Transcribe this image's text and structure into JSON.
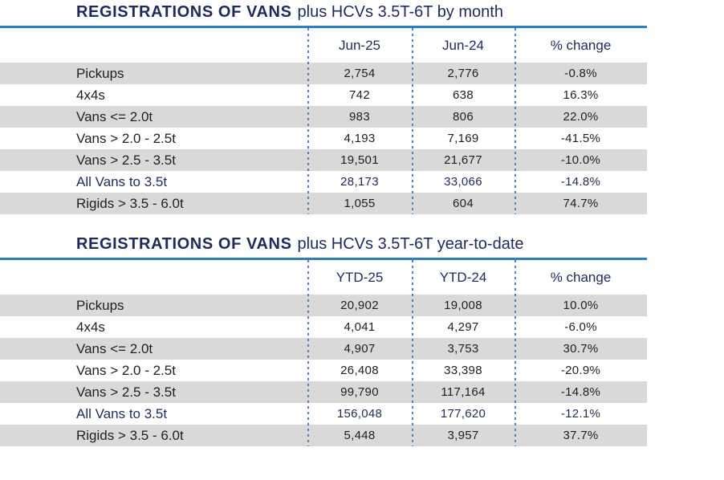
{
  "document": {
    "colors": {
      "navy_text": "#1f2a5c",
      "rule_blue": "#2d7ec4",
      "dotted_divider_blue": "#4a85c1",
      "row_shade_gray": "#d9d9d9",
      "body_text": "#1f1f1f"
    },
    "tables": [
      {
        "title_bold": "REGISTRATIONS OF VANS",
        "title_rest": "plus HCVs 3.5T-6T by month",
        "columns": [
          "Jun-25",
          "Jun-24",
          "% change"
        ],
        "rows": [
          {
            "label": "Pickups",
            "current": "2,754",
            "previous": "2,776",
            "pct_change": "-0.8%"
          },
          {
            "label": "4x4s",
            "current": "742",
            "previous": "638",
            "pct_change": "16.3%"
          },
          {
            "label": "Vans <= 2.0t",
            "current": "983",
            "previous": "806",
            "pct_change": "22.0%"
          },
          {
            "label": "Vans > 2.0 - 2.5t",
            "current": "4,193",
            "previous": "7,169",
            "pct_change": "-41.5%"
          },
          {
            "label": "Vans > 2.5 - 3.5t",
            "current": "19,501",
            "previous": "21,677",
            "pct_change": "-10.0%"
          },
          {
            "label": "All Vans to 3.5t",
            "current": "28,173",
            "previous": "33,066",
            "pct_change": "-14.8%"
          },
          {
            "label": "Rigids > 3.5 - 6.0t",
            "current": "1,055",
            "previous": "604",
            "pct_change": "74.7%"
          }
        ]
      },
      {
        "title_bold": "REGISTRATIONS OF VANS",
        "title_rest": "plus HCVs 3.5T-6T year-to-date",
        "columns": [
          "YTD-25",
          "YTD-24",
          "% change"
        ],
        "rows": [
          {
            "label": "Pickups",
            "current": "20,902",
            "previous": "19,008",
            "pct_change": "10.0%"
          },
          {
            "label": "4x4s",
            "current": "4,041",
            "previous": "4,297",
            "pct_change": "-6.0%"
          },
          {
            "label": "Vans <= 2.0t",
            "current": "4,907",
            "previous": "3,753",
            "pct_change": "30.7%"
          },
          {
            "label": "Vans > 2.0 - 2.5t",
            "current": "26,408",
            "previous": "33,398",
            "pct_change": "-20.9%"
          },
          {
            "label": "Vans > 2.5 - 3.5t",
            "current": "99,790",
            "previous": "117,164",
            "pct_change": "-14.8%"
          },
          {
            "label": "All Vans to 3.5t",
            "current": "156,048",
            "previous": "177,620",
            "pct_change": "-12.1%"
          },
          {
            "label": "Rigids > 3.5 - 6.0t",
            "current": "5,448",
            "previous": "3,957",
            "pct_change": "37.7%"
          }
        ]
      }
    ]
  }
}
